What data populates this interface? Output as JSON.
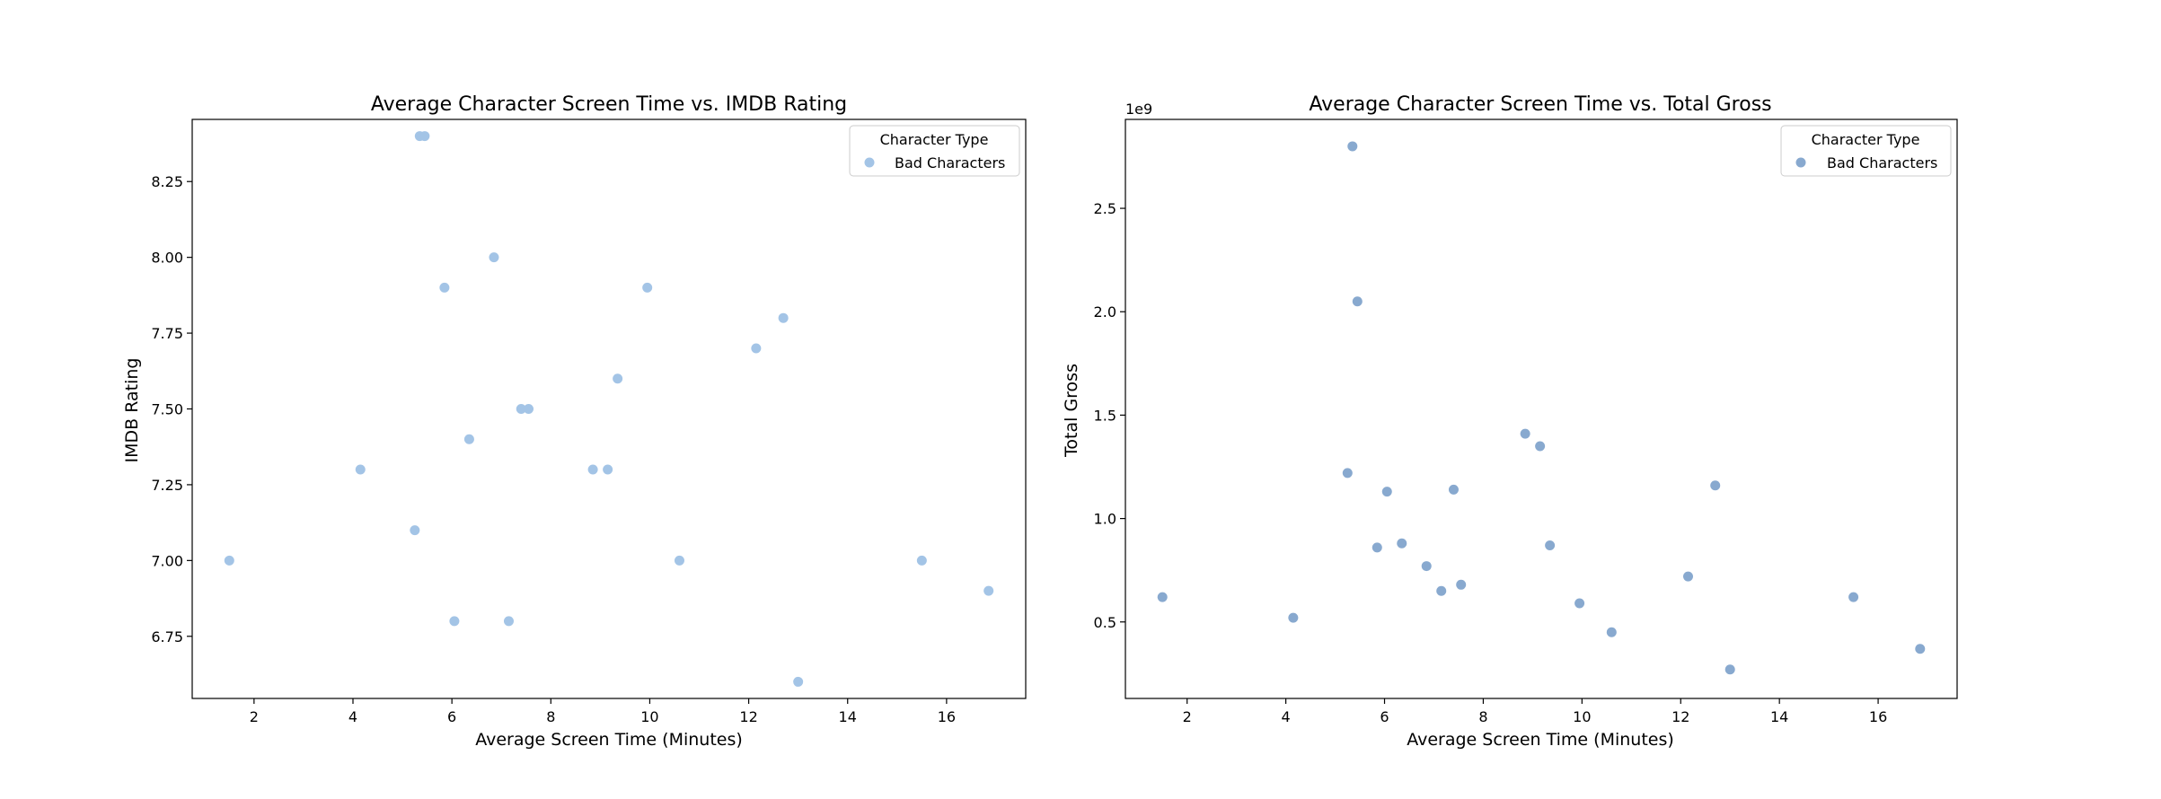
{
  "chart_data": [
    {
      "type": "scatter",
      "title": "Average Character Screen Time vs. IMDB Rating",
      "xlabel": "Average Screen Time (Minutes)",
      "ylabel": "IMDB Rating",
      "xlim": [
        0.75,
        17.6
      ],
      "ylim": [
        6.545,
        8.455
      ],
      "xticks": [
        2,
        4,
        6,
        8,
        10,
        12,
        14,
        16
      ],
      "xtick_labels": [
        "2",
        "4",
        "6",
        "8",
        "10",
        "12",
        "14",
        "16"
      ],
      "yticks": [
        6.75,
        7.0,
        7.25,
        7.5,
        7.75,
        8.0,
        8.25
      ],
      "ytick_labels": [
        "6.75",
        "7.00",
        "7.25",
        "7.50",
        "7.75",
        "8.00",
        "8.25"
      ],
      "grid": false,
      "legend": {
        "title": "Character Type",
        "placement": "top-right"
      },
      "series": [
        {
          "name": "Bad Characters",
          "color": "#a3c4e6",
          "x": [
            1.5,
            4.15,
            5.25,
            5.35,
            5.45,
            5.85,
            6.05,
            6.35,
            6.85,
            7.15,
            7.4,
            7.55,
            8.85,
            9.15,
            9.35,
            9.95,
            10.6,
            12.15,
            12.7,
            13.0,
            15.5,
            16.85
          ],
          "y": [
            7.0,
            7.3,
            7.1,
            8.4,
            8.4,
            7.9,
            6.8,
            7.4,
            8.0,
            6.8,
            7.5,
            7.5,
            7.3,
            7.3,
            7.6,
            7.9,
            7.0,
            7.7,
            7.8,
            6.6,
            7.0,
            6.9
          ]
        }
      ]
    },
    {
      "type": "scatter",
      "title": "Average Character Screen Time vs. Total Gross",
      "xlabel": "Average Screen Time (Minutes)",
      "ylabel": "Total Gross",
      "offset_text": "1e9",
      "xlim": [
        0.75,
        17.6
      ],
      "ylim": [
        0.13,
        2.93
      ],
      "xticks": [
        2,
        4,
        6,
        8,
        10,
        12,
        14,
        16
      ],
      "xtick_labels": [
        "2",
        "4",
        "6",
        "8",
        "10",
        "12",
        "14",
        "16"
      ],
      "yticks": [
        0.5,
        1.0,
        1.5,
        2.0,
        2.5
      ],
      "ytick_labels": [
        "0.5",
        "1.0",
        "1.5",
        "2.0",
        "2.5"
      ],
      "grid": false,
      "legend": {
        "title": "Character Type",
        "placement": "top-right"
      },
      "series": [
        {
          "name": "Bad Characters",
          "color": "#88a9cf",
          "x": [
            1.5,
            4.15,
            5.25,
            5.35,
            5.45,
            5.85,
            6.05,
            6.35,
            6.85,
            7.15,
            7.4,
            7.55,
            8.85,
            9.15,
            9.35,
            9.95,
            10.6,
            12.15,
            12.7,
            13.0,
            15.5,
            16.85
          ],
          "y": [
            0.62,
            0.52,
            1.22,
            2.8,
            2.05,
            0.86,
            1.13,
            0.88,
            0.77,
            0.65,
            1.14,
            0.68,
            1.41,
            1.35,
            0.87,
            0.59,
            0.45,
            0.72,
            1.16,
            0.27,
            0.62,
            0.37
          ]
        }
      ]
    }
  ]
}
